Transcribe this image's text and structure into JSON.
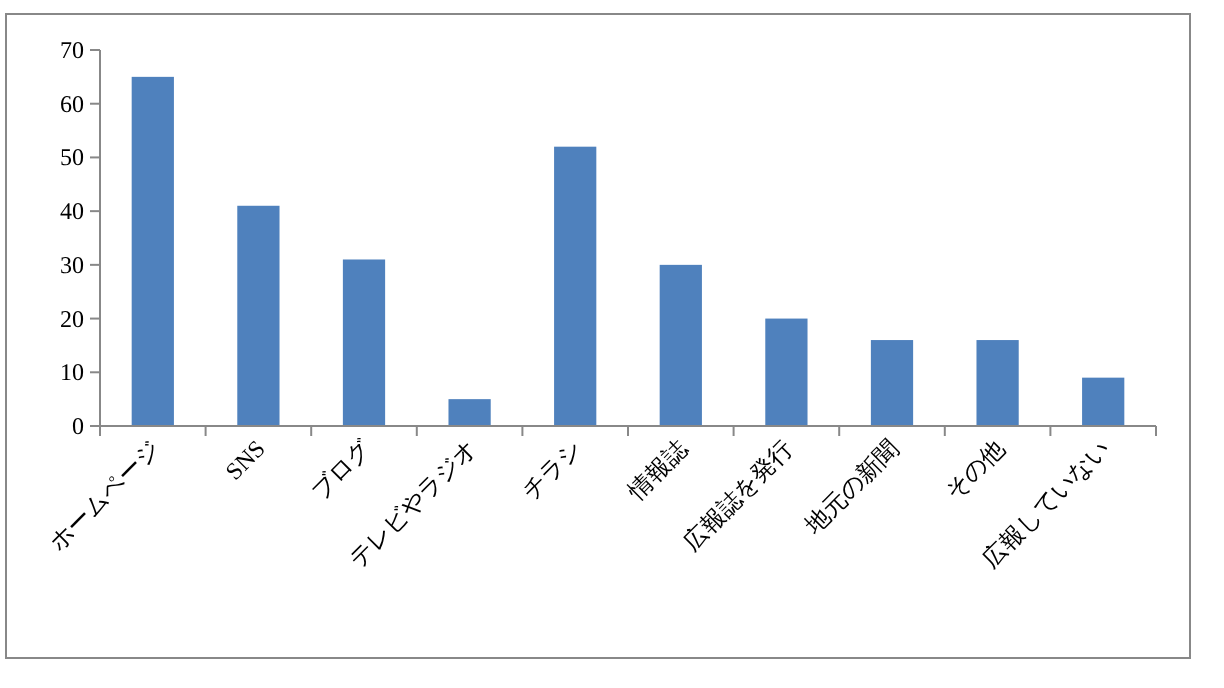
{
  "chart_data": {
    "type": "bar",
    "categories": [
      "ホームページ",
      "SNS",
      "ブログ",
      "テレビやラジオ",
      "チラシ",
      "情報誌",
      "広報誌を発行",
      "地元の新聞",
      "その他",
      "広報していない"
    ],
    "values": [
      65,
      41,
      31,
      5,
      52,
      30,
      20,
      16,
      16,
      9
    ],
    "color": "#4f81bd",
    "ylim": [
      0,
      70
    ],
    "yticks": [
      0,
      10,
      20,
      30,
      40,
      50,
      60,
      70
    ],
    "grid": false
  }
}
